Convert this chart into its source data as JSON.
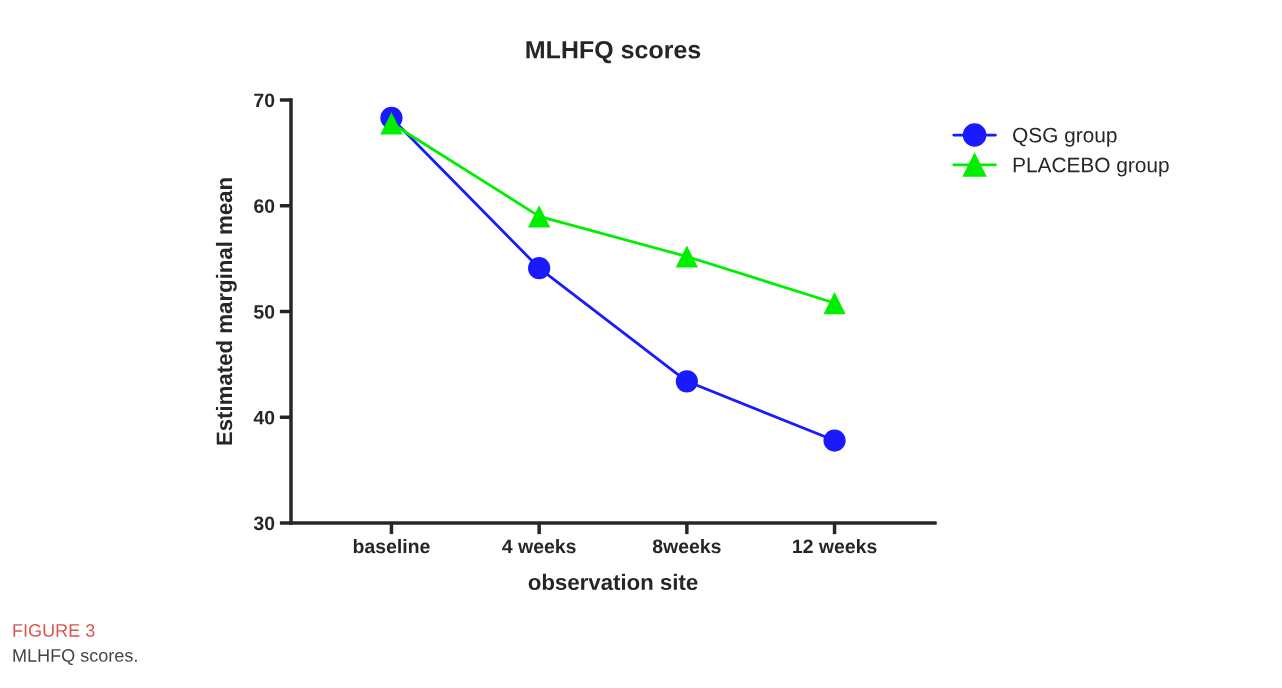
{
  "chart_data": {
    "type": "line",
    "title": "MLHFQ scores",
    "xlabel": "observation site",
    "ylabel": "Estimated marginal mean",
    "categories": [
      "baseline",
      "4 weeks",
      "8weeks",
      "12 weeks"
    ],
    "series": [
      {
        "name": "QSG group",
        "color": "#1a1aff",
        "marker": "circle",
        "values": [
          68.3,
          54.1,
          43.4,
          37.8
        ]
      },
      {
        "name": "PLACEBO group",
        "color": "#00ee00",
        "marker": "triangle",
        "values": [
          67.8,
          59.0,
          55.2,
          50.8
        ]
      }
    ],
    "ylim": [
      30,
      70
    ],
    "yticks": [
      30,
      40,
      50,
      60,
      70
    ],
    "grid": false,
    "legend": "top right",
    "annotations": [
      "FIGURE 3",
      "MLHFQ scores."
    ]
  }
}
